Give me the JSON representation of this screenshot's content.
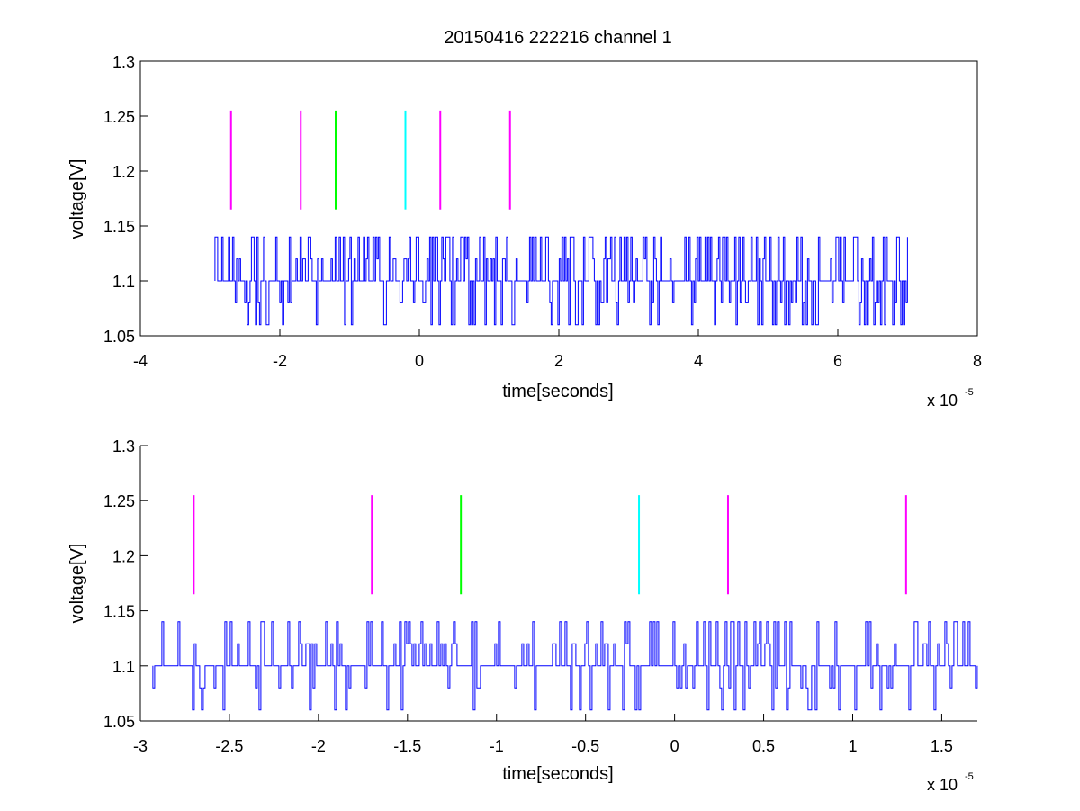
{
  "chart_data": [
    {
      "type": "line",
      "title": "20150416 222216 channel 1",
      "xlabel": "time[seconds]",
      "ylabel": "voltage[V]",
      "x_multiplier_label": "x 10",
      "x_multiplier_exponent": "-5",
      "xlim": [
        -4,
        8
      ],
      "ylim": [
        1.05,
        1.3
      ],
      "xticks": [
        -4,
        -2,
        0,
        2,
        4,
        6,
        8
      ],
      "xtick_labels": [
        "-4",
        "-2",
        "0",
        "2",
        "4",
        "6",
        "8"
      ],
      "yticks": [
        1.05,
        1.1,
        1.15,
        1.2,
        1.25,
        1.3
      ],
      "ytick_labels": [
        "1.05",
        "1.1",
        "1.15",
        "1.2",
        "1.25",
        "1.3"
      ],
      "grid": false,
      "series": [
        {
          "color": "#0000ff",
          "x_range": [
            -2.93,
            7.0
          ],
          "levels": [
            1.06,
            1.08,
            1.1,
            1.12,
            1.14
          ],
          "baseline": 1.1,
          "description_values": "dense noise trace between 1.06 and 1.14"
        }
      ],
      "markers": [
        {
          "x": -2.7,
          "y": [
            1.165,
            1.255
          ],
          "color": "#ff00ff"
        },
        {
          "x": -1.7,
          "y": [
            1.165,
            1.255
          ],
          "color": "#ff00ff"
        },
        {
          "x": -1.2,
          "y": [
            1.165,
            1.255
          ],
          "color": "#00ff00"
        },
        {
          "x": -0.2,
          "y": [
            1.165,
            1.255
          ],
          "color": "#00ffff"
        },
        {
          "x": 0.3,
          "y": [
            1.165,
            1.255
          ],
          "color": "#ff00ff"
        },
        {
          "x": 1.3,
          "y": [
            1.165,
            1.255
          ],
          "color": "#ff00ff"
        }
      ]
    },
    {
      "type": "line",
      "xlabel": "time[seconds]",
      "ylabel": "voltage[V]",
      "x_multiplier_label": "x 10",
      "x_multiplier_exponent": "-5",
      "xlim": [
        -3,
        1.7
      ],
      "ylim": [
        1.05,
        1.3
      ],
      "xticks": [
        -3,
        -2.5,
        -2,
        -1.5,
        -1,
        -0.5,
        0,
        0.5,
        1,
        1.5
      ],
      "xtick_labels": [
        "-3",
        "-2.5",
        "-2",
        "-1.5",
        "-1",
        "-0.5",
        "0",
        "0.5",
        "1",
        "1.5"
      ],
      "yticks": [
        1.05,
        1.1,
        1.15,
        1.2,
        1.25,
        1.3
      ],
      "ytick_labels": [
        "1.05",
        "1.1",
        "1.15",
        "1.2",
        "1.25",
        "1.3"
      ],
      "grid": false,
      "series": [
        {
          "color": "#0000ff",
          "x_range": [
            -2.93,
            1.7
          ],
          "levels": [
            1.06,
            1.08,
            1.1,
            1.12,
            1.14
          ],
          "baseline": 1.1
        }
      ],
      "markers": [
        {
          "x": -2.7,
          "y": [
            1.165,
            1.255
          ],
          "color": "#ff00ff"
        },
        {
          "x": -1.7,
          "y": [
            1.165,
            1.255
          ],
          "color": "#ff00ff"
        },
        {
          "x": -1.2,
          "y": [
            1.165,
            1.255
          ],
          "color": "#00ff00"
        },
        {
          "x": -0.2,
          "y": [
            1.165,
            1.255
          ],
          "color": "#00ffff"
        },
        {
          "x": 0.3,
          "y": [
            1.165,
            1.255
          ],
          "color": "#ff00ff"
        },
        {
          "x": 1.3,
          "y": [
            1.165,
            1.255
          ],
          "color": "#ff00ff"
        }
      ]
    }
  ]
}
